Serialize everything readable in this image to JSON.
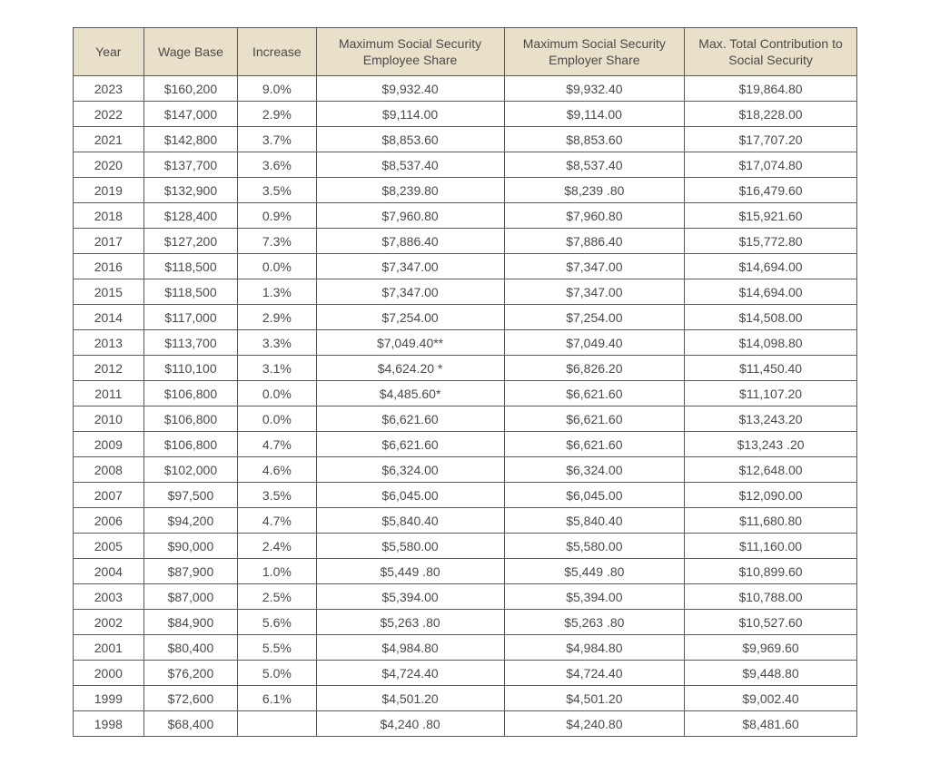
{
  "table": {
    "type": "table",
    "header_bg": "#e8e0c8",
    "border_color": "#5a5a5a",
    "text_color": "#4a4a4a",
    "font_size": 14,
    "columns": [
      {
        "key": "year",
        "label": "Year",
        "width_pct": 9
      },
      {
        "key": "wage",
        "label": "Wage Base",
        "width_pct": 12
      },
      {
        "key": "increase",
        "label": "Increase",
        "width_pct": 10
      },
      {
        "key": "employee",
        "label": "Maximum Social Security Employee Share",
        "width_pct": 24
      },
      {
        "key": "employer",
        "label": "Maximum Social Security Employer Share",
        "width_pct": 23
      },
      {
        "key": "total",
        "label": "Max. Total Contribution to Social Security",
        "width_pct": 22
      }
    ],
    "rows": [
      [
        "2023",
        "$160,200",
        "9.0%",
        "$9,932.40",
        "$9,932.40",
        "$19,864.80"
      ],
      [
        "2022",
        "$147,000",
        "2.9%",
        "$9,114.00",
        "$9,114.00",
        "$18,228.00"
      ],
      [
        "2021",
        "$142,800",
        "3.7%",
        "$8,853.60",
        "$8,853.60",
        "$17,707.20"
      ],
      [
        "2020",
        "$137,700",
        "3.6%",
        "$8,537.40",
        "$8,537.40",
        "$17,074.80"
      ],
      [
        "2019",
        "$132,900",
        "3.5%",
        "$8,239.80",
        "$8,239 .80",
        "$16,479.60"
      ],
      [
        "2018",
        "$128,400",
        "0.9%",
        "$7,960.80",
        "$7,960.80",
        "$15,921.60"
      ],
      [
        "2017",
        "$127,200",
        "7.3%",
        "$7,886.40",
        "$7,886.40",
        "$15,772.80"
      ],
      [
        "2016",
        "$118,500",
        "0.0%",
        "$7,347.00",
        "$7,347.00",
        "$14,694.00"
      ],
      [
        "2015",
        "$118,500",
        "1.3%",
        "$7,347.00",
        "$7,347.00",
        "$14,694.00"
      ],
      [
        "2014",
        "$117,000",
        "2.9%",
        "$7,254.00",
        "$7,254.00",
        "$14,508.00"
      ],
      [
        "2013",
        "$113,700",
        "3.3%",
        "$7,049.40**",
        "$7,049.40",
        "$14,098.80"
      ],
      [
        "2012",
        "$110,100",
        "3.1%",
        "$4,624.20 *",
        "$6,826.20",
        "$11,450.40"
      ],
      [
        "2011",
        "$106,800",
        "0.0%",
        "$4,485.60*",
        "$6,621.60",
        "$11,107.20"
      ],
      [
        "2010",
        "$106,800",
        "0.0%",
        "$6,621.60",
        "$6,621.60",
        "$13,243.20"
      ],
      [
        "2009",
        "$106,800",
        "4.7%",
        "$6,621.60",
        "$6,621.60",
        "$13,243 .20"
      ],
      [
        "2008",
        "$102,000",
        "4.6%",
        "$6,324.00",
        "$6,324.00",
        "$12,648.00"
      ],
      [
        "2007",
        "$97,500",
        "3.5%",
        "$6,045.00",
        "$6,045.00",
        "$12,090.00"
      ],
      [
        "2006",
        "$94,200",
        "4.7%",
        "$5,840.40",
        "$5,840.40",
        "$11,680.80"
      ],
      [
        "2005",
        "$90,000",
        "2.4%",
        "$5,580.00",
        "$5,580.00",
        "$11,160.00"
      ],
      [
        "2004",
        "$87,900",
        "1.0%",
        "$5,449 .80",
        "$5,449 .80",
        "$10,899.60"
      ],
      [
        "2003",
        "$87,000",
        "2.5%",
        "$5,394.00",
        "$5,394.00",
        "$10,788.00"
      ],
      [
        "2002",
        "$84,900",
        "5.6%",
        "$5,263 .80",
        "$5,263 .80",
        "$10,527.60"
      ],
      [
        "2001",
        "$80,400",
        "5.5%",
        "$4,984.80",
        "$4,984.80",
        "$9,969.60"
      ],
      [
        "2000",
        "$76,200",
        "5.0%",
        "$4,724.40",
        "$4,724.40",
        "$9,448.80"
      ],
      [
        "1999",
        "$72,600",
        "6.1%",
        "$4,501.20",
        "$4,501.20",
        "$9,002.40"
      ],
      [
        "1998",
        "$68,400",
        "",
        "$4,240 .80",
        "$4,240.80",
        "$8,481.60"
      ]
    ]
  }
}
